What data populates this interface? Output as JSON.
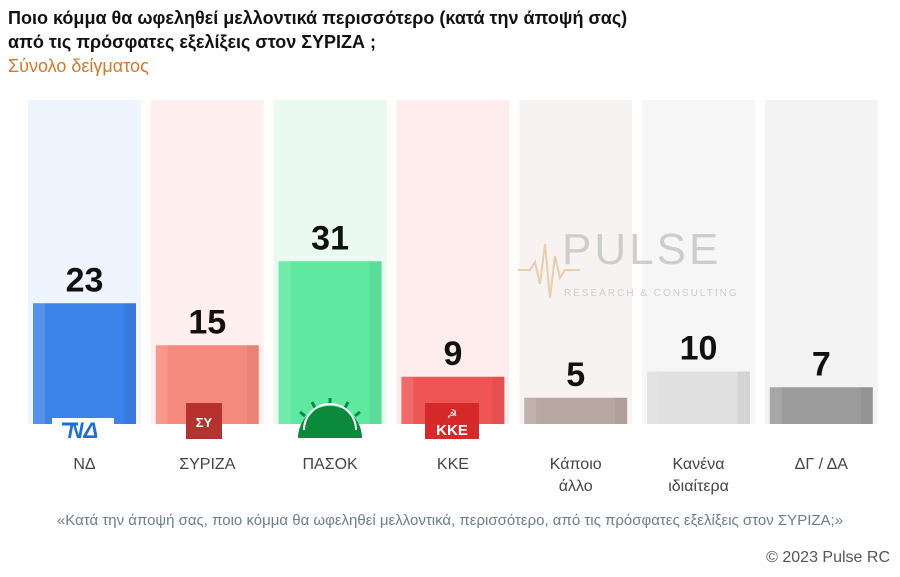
{
  "header": {
    "title_line1": "Ποιο κόμμα θα ωφεληθεί μελλοντικά περισσότερο (κατά την άποψή σας)",
    "title_line2": "από τις πρόσφατες εξελίξεις στον ΣΥΡΙΖΑ ;",
    "subtitle": "Σύνολο δείγματος"
  },
  "watermark": {
    "brand": "PULSE",
    "tagline": "RESEARCH & CONSULTING"
  },
  "logos": {
    "nd": "ΝΔ",
    "kke": "ΚΚΕ",
    "syriza_mark": "ΣΥ"
  },
  "chart_data": {
    "type": "bar",
    "categories": [
      "ΝΔ",
      "ΣΥΡΙΖΑ",
      "ΠΑΣΟΚ",
      "ΚΚΕ",
      "Κάποιο άλλο",
      "Κανένα ιδιαίτερα",
      "ΔΓ / ΔΑ"
    ],
    "category_lines": [
      [
        "ΝΔ"
      ],
      [
        "ΣΥΡΙΖΑ"
      ],
      [
        "ΠΑΣΟΚ"
      ],
      [
        "ΚΚΕ"
      ],
      [
        "Κάποιο",
        "άλλο"
      ],
      [
        "Κανένα",
        "ιδιαίτερα"
      ],
      [
        "ΔΓ / ΔΑ"
      ]
    ],
    "values": [
      23,
      15,
      31,
      9,
      5,
      10,
      7
    ],
    "colors": [
      "#3c82e8",
      "#f6897e",
      "#5fe8a0",
      "#ef5555",
      "#b8a8a2",
      "#e0e0e0",
      "#9b9b9b"
    ],
    "bg_colors": [
      "#eef5ff",
      "#fff0ef",
      "#eafaf0",
      "#ffeded",
      "#f8f3f3",
      "#f6f6f6",
      "#f3f3f3"
    ],
    "ylim": [
      0,
      40
    ],
    "title": "Ποιο κόμμα θα ωφεληθεί μελλοντικά περισσότερο (κατά την άποψή σας) από τις πρόσφατες εξελίξεις στον ΣΥΡΙΖΑ ;",
    "xlabel": "",
    "ylabel": ""
  },
  "footer": {
    "caption": "«Κατά την άποψή σας, ποιο κόμμα θα ωφεληθεί μελλοντικά, περισσότερο, από τις πρόσφατες εξελίξεις στον ΣΥΡΙΖΑ;»",
    "copyright": "© 2023 Pulse RC"
  }
}
